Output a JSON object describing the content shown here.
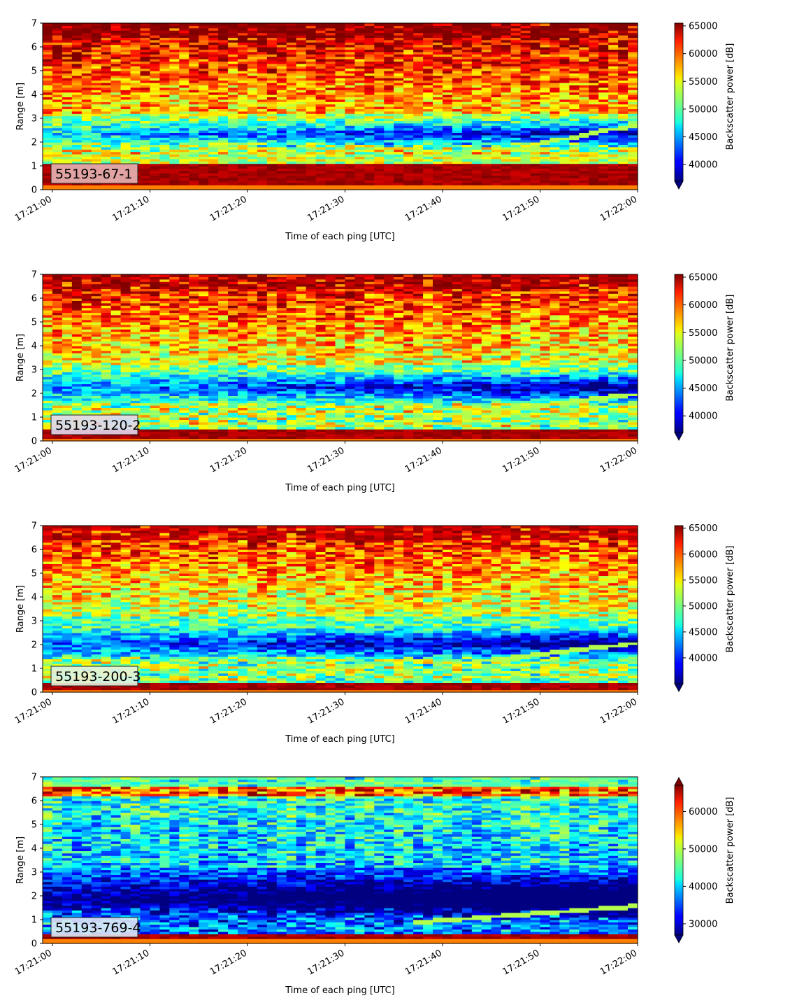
{
  "colormap": "jet",
  "chart_data": [
    {
      "type": "heatmap",
      "id_label": "55193-67-1",
      "id_label_bg": "#e7b5b5",
      "xlabel": "Time of each ping [UTC]",
      "ylabel": "Range [m]",
      "xlim": [
        "17:20:59",
        "17:22:00"
      ],
      "ylim": [
        0,
        7
      ],
      "x_ticks": [
        "17:21:00",
        "17:21:10",
        "17:21:20",
        "17:21:30",
        "17:21:40",
        "17:21:50",
        "17:22:00"
      ],
      "y_ticks": [
        "0",
        "1",
        "2",
        "3",
        "4",
        "5",
        "6",
        "7"
      ],
      "colorbar": {
        "label": "Backscatter power [dB]",
        "vmin": 37000,
        "vmax": 65500,
        "ticks": [
          "40000",
          "45000",
          "50000",
          "55000",
          "60000",
          "65000"
        ],
        "extend": "min"
      },
      "features": {
        "bottom_strong": [
          0.2,
          1.1
        ],
        "low_layer": [
          1.5,
          2.0
        ],
        "dark_band": [
          1.6,
          3.1
        ],
        "mid_level": 56000,
        "top_level": 64000,
        "diagonal_start": [
          40,
          1.1
        ],
        "diagonal_end": [
          61,
          2.8
        ]
      }
    },
    {
      "type": "heatmap",
      "id_label": "55193-120-2",
      "id_label_bg": "#e2d8ee",
      "xlabel": "Time of each ping [UTC]",
      "ylabel": "Range [m]",
      "xlim": [
        "17:20:59",
        "17:22:00"
      ],
      "ylim": [
        0,
        7
      ],
      "x_ticks": [
        "17:21:00",
        "17:21:10",
        "17:21:20",
        "17:21:30",
        "17:21:40",
        "17:21:50",
        "17:22:00"
      ],
      "y_ticks": [
        "0",
        "1",
        "2",
        "3",
        "4",
        "5",
        "6",
        "7"
      ],
      "colorbar": {
        "label": "Backscatter power [dB]",
        "vmin": 37000,
        "vmax": 65500,
        "ticks": [
          "40000",
          "45000",
          "50000",
          "55000",
          "60000",
          "65000"
        ],
        "extend": "min"
      },
      "features": {
        "bottom_strong": [
          0.1,
          0.5
        ],
        "low_layer": [
          0.6,
          1.6
        ],
        "dark_band": [
          1.5,
          3.0
        ],
        "mid_level": 54000,
        "top_level": 63000,
        "diagonal_start": [
          35,
          0.8
        ],
        "diagonal_end": [
          61,
          2.0
        ]
      }
    },
    {
      "type": "heatmap",
      "id_label": "55193-200-3",
      "id_label_bg": "#e6f2dc",
      "xlabel": "Time of each ping [UTC]",
      "ylabel": "Range [m]",
      "xlim": [
        "17:20:59",
        "17:22:00"
      ],
      "ylim": [
        0,
        7
      ],
      "x_ticks": [
        "17:21:00",
        "17:21:10",
        "17:21:20",
        "17:21:30",
        "17:21:40",
        "17:21:50",
        "17:22:00"
      ],
      "y_ticks": [
        "0",
        "1",
        "2",
        "3",
        "4",
        "5",
        "6",
        "7"
      ],
      "colorbar": {
        "label": "Backscatter power [dB]",
        "vmin": 35000,
        "vmax": 65500,
        "ticks": [
          "40000",
          "45000",
          "50000",
          "55000",
          "60000",
          "65000"
        ],
        "extend": "min"
      },
      "features": {
        "bottom_strong": [
          0.1,
          0.4
        ],
        "low_layer": [
          0.5,
          1.5
        ],
        "dark_band": [
          1.3,
          2.8
        ],
        "mid_level": 52000,
        "top_level": 62000,
        "diagonal_start": [
          42,
          1.2
        ],
        "diagonal_end": [
          61,
          2.1
        ]
      }
    },
    {
      "type": "heatmap",
      "id_label": "55193-769-4",
      "id_label_bg": "#dfe8f5",
      "xlabel": "Time of each ping [UTC]",
      "ylabel": "Range [m]",
      "xlim": [
        "17:20:59",
        "17:22:00"
      ],
      "ylim": [
        0,
        7
      ],
      "x_ticks": [
        "17:21:00",
        "17:21:10",
        "17:21:20",
        "17:21:30",
        "17:21:40",
        "17:21:50",
        "17:22:00"
      ],
      "y_ticks": [
        "0",
        "1",
        "2",
        "3",
        "4",
        "5",
        "6",
        "7"
      ],
      "colorbar": {
        "label": "Backscatter power [dB]",
        "vmin": 27000,
        "vmax": 67000,
        "ticks": [
          "30000",
          "40000",
          "50000",
          "60000"
        ],
        "extend": "both"
      },
      "features": {
        "bottom_strong": [
          0.2,
          0.4
        ],
        "low_layer": [
          0.5,
          1.5
        ],
        "dark_band": [
          0.8,
          3.0
        ],
        "mid_level": 40000,
        "top_level": 44000,
        "diagonal_start": [
          38,
          0.9
        ],
        "diagonal_end": [
          61,
          1.6
        ],
        "top_stripe": [
          6.2,
          6.6
        ]
      }
    }
  ]
}
